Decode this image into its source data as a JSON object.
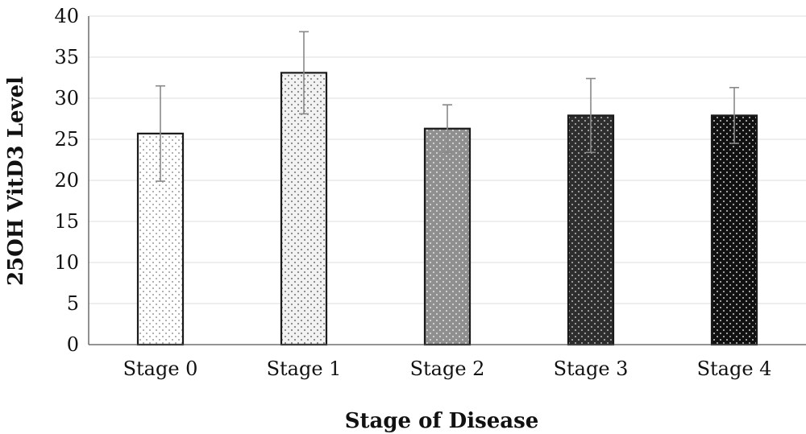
{
  "chart_data": {
    "type": "bar",
    "title": "",
    "xlabel": "Stage of Disease",
    "ylabel": "25OH VitD3 Level",
    "ylim": [
      0,
      40
    ],
    "yticks": [
      0,
      5,
      10,
      15,
      20,
      25,
      30,
      35,
      40
    ],
    "ytick_labels": [
      "0",
      "5",
      "10",
      "15",
      "20",
      "25",
      "30",
      "35",
      "40"
    ],
    "grid": true,
    "legend": "none",
    "categories": [
      "Stage 0",
      "Stage 1",
      "Stage 2",
      "Stage 3",
      "Stage 4"
    ],
    "values": [
      25.7,
      33.1,
      26.3,
      27.9,
      27.9
    ],
    "error": [
      5.8,
      5.0,
      2.9,
      4.5,
      3.4
    ],
    "bar_patterns": [
      {
        "fill": "#ffffff",
        "dot": "#9a9a9a"
      },
      {
        "fill": "#f2f2f2",
        "dot": "#6f6f6f"
      },
      {
        "fill": "#8f8f8f",
        "dot": "#e6e6e6"
      },
      {
        "fill": "#2e2e2e",
        "dot": "#bdbdbd"
      },
      {
        "fill": "#111111",
        "dot": "#cfcfcf"
      }
    ],
    "bar_border": "#1a1a1a",
    "error_color": "#888888"
  }
}
